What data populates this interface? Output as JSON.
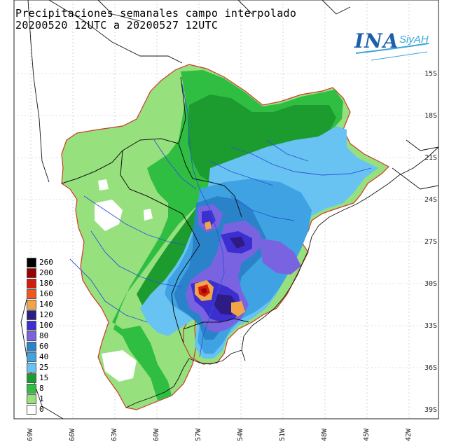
{
  "header": {
    "title_line1": "Precipitaciones semanales campo interpolado",
    "title_line2": "20200520 12UTC a 20200527 12UTC"
  },
  "logo": {
    "primary": "INA",
    "secondary": "SiyAH"
  },
  "latitude_labels": [
    "15S",
    "18S",
    "21S",
    "24S",
    "27S",
    "30S",
    "33S",
    "36S",
    "39S"
  ],
  "longitude_labels": [
    "69W",
    "66W",
    "63W",
    "60W",
    "57W",
    "54W",
    "51W",
    "48W",
    "45W",
    "42W"
  ],
  "legend": {
    "values": [
      "260",
      "200",
      "180",
      "160",
      "140",
      "120",
      "100",
      "80",
      "60",
      "40",
      "25",
      "15",
      "8",
      "1",
      "0"
    ],
    "colors": [
      "#000000",
      "#9a0000",
      "#d41c0b",
      "#f0581c",
      "#f2a546",
      "#2f1b84",
      "#3d2ed0",
      "#7a63e0",
      "#2a83c9",
      "#3fa3e3",
      "#68c3f2",
      "#1c9b2e",
      "#2fbe42",
      "#96e07e",
      "#ffffff"
    ]
  },
  "map_colors": {
    "land_outline": "#d0382a",
    "coast": "#111111",
    "rivers": "#2d55d8"
  }
}
